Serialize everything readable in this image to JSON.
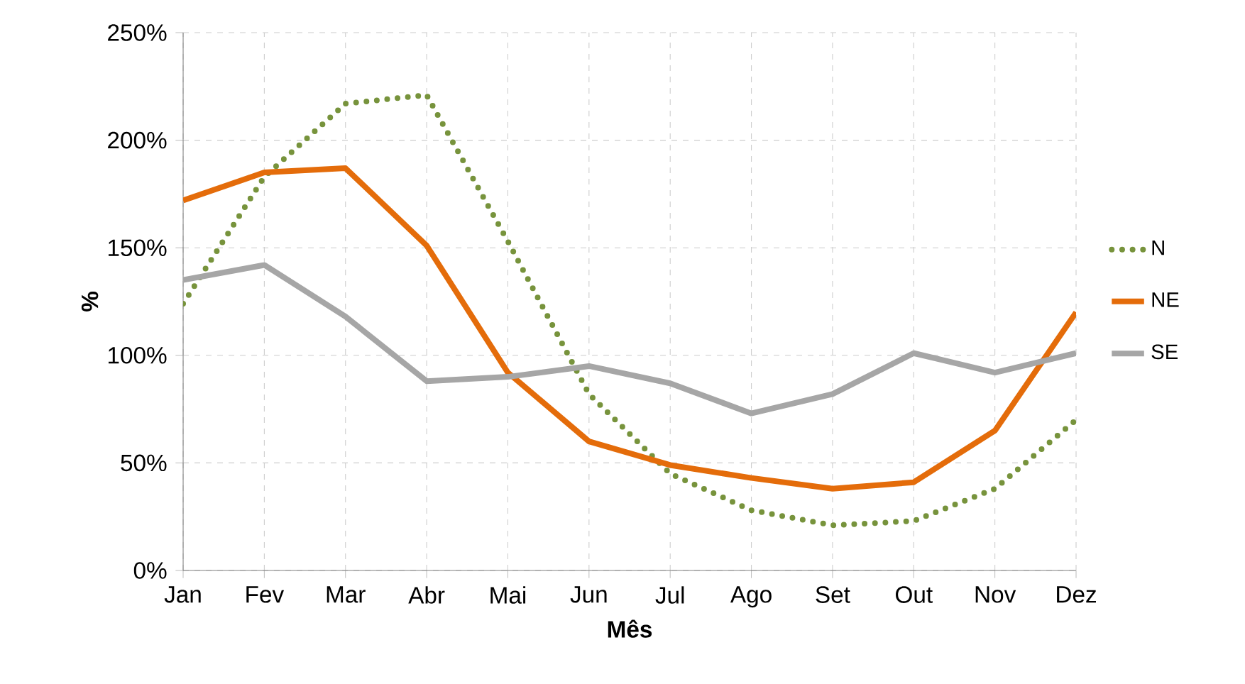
{
  "chart_data": {
    "type": "line",
    "xlabel": "Mês",
    "ylabel": "%",
    "categories": [
      "Jan",
      "Fev",
      "Mar",
      "Abr",
      "Mai",
      "Jun",
      "Jul",
      "Ago",
      "Set",
      "Out",
      "Nov",
      "Dez"
    ],
    "series": [
      {
        "name": "N",
        "color": "#77933c",
        "line_style": "dotted",
        "values": [
          124,
          183,
          217,
          221,
          153,
          82,
          45,
          28,
          21,
          23,
          38,
          70
        ]
      },
      {
        "name": "NE",
        "color": "#e46c0a",
        "line_style": "solid",
        "values": [
          172,
          185,
          187,
          151,
          92,
          60,
          49,
          43,
          38,
          41,
          65,
          120
        ]
      },
      {
        "name": "SE",
        "color": "#a6a6a6",
        "line_style": "solid",
        "values": [
          135,
          142,
          118,
          88,
          90,
          95,
          87,
          73,
          82,
          101,
          92,
          101
        ]
      }
    ],
    "ylim": [
      0,
      250
    ],
    "yticks": [
      {
        "value": 0,
        "label": "0%"
      },
      {
        "value": 50,
        "label": "50%"
      },
      {
        "value": 100,
        "label": "100%"
      },
      {
        "value": 150,
        "label": "150%"
      },
      {
        "value": 200,
        "label": "200%"
      },
      {
        "value": 250,
        "label": "250%"
      }
    ],
    "grid": true,
    "legend": "right",
    "marker": "none"
  }
}
